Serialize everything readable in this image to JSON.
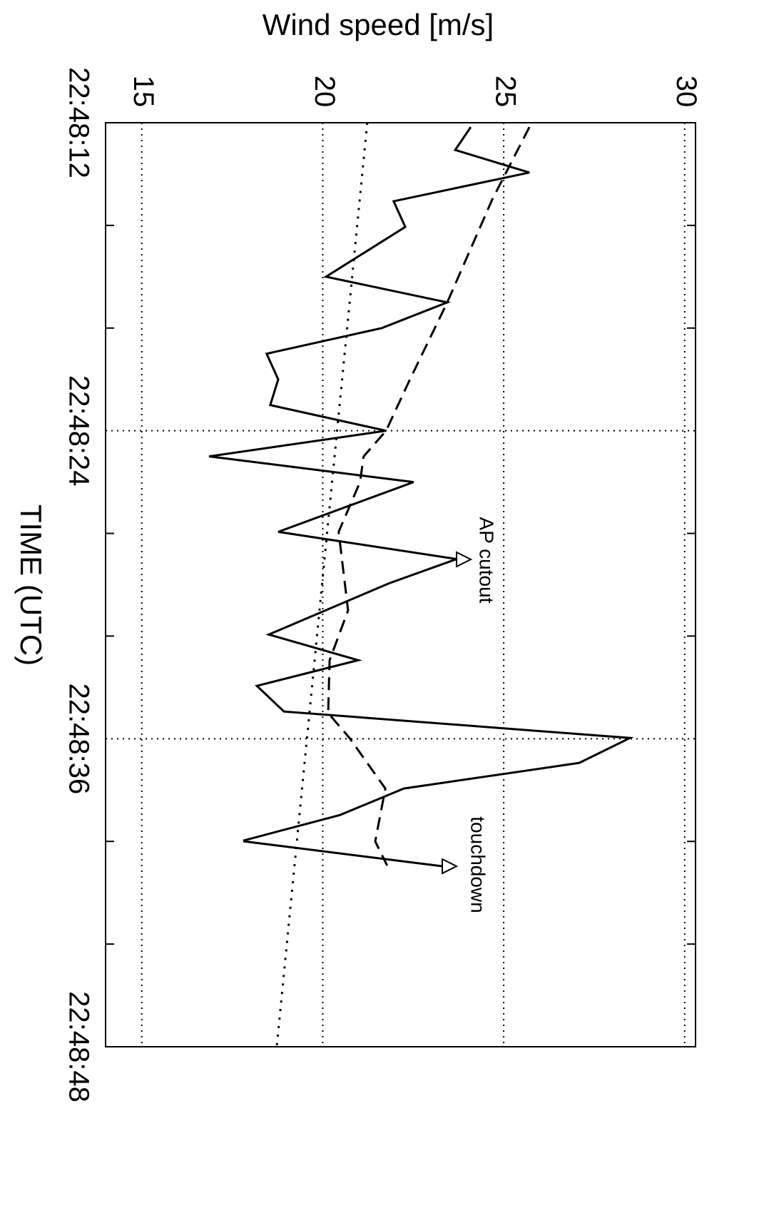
{
  "chart_data": {
    "type": "line",
    "orientation": "rotated",
    "title": "Wind speed [m/s]",
    "x_label": "TIME (UTC)",
    "xlim": [
      12,
      48
    ],
    "xticks": [
      {
        "value": 12,
        "label": "22:48:12"
      },
      {
        "value": 24,
        "label": "22:48:24"
      },
      {
        "value": 36,
        "label": "22:48:36"
      },
      {
        "value": 48,
        "label": "22:48:48"
      }
    ],
    "x_minor_ticks": [
      16,
      20,
      28,
      32,
      40,
      44
    ],
    "ylim": [
      14,
      30.3
    ],
    "yticks": [
      15,
      20,
      25,
      30
    ],
    "grid": true,
    "annotations": [
      "AP cutout",
      "touchdown"
    ],
    "series": [
      {
        "style": "solid",
        "color": "#000000",
        "x": [
          12.17,
          13.06,
          13.94,
          15.06,
          16.06,
          18.0,
          19.0,
          20.0,
          21.0,
          22.0,
          23.0,
          24.0,
          25.0,
          26.0,
          27.94,
          29.0,
          29.94,
          31.94,
          32.94,
          33.94,
          34.94,
          35.97,
          36.94,
          37.94,
          38.97,
          39.97
        ],
        "values": [
          24.09,
          23.66,
          25.71,
          21.96,
          22.28,
          20.09,
          23.44,
          21.63,
          18.45,
          18.77,
          18.55,
          21.75,
          16.86,
          22.51,
          18.77,
          23.7,
          21.84,
          18.51,
          20.98,
          18.18,
          18.93,
          28.49,
          27.09,
          22.24,
          20.48,
          17.8
        ]
      },
      {
        "style": "dashed",
        "color": "#000000",
        "x": [
          12.17,
          15.0,
          19.0,
          22.0,
          24.0,
          25.0,
          26.0,
          27.94,
          31.0,
          32.94,
          35.0,
          35.97,
          37.94,
          40.0,
          40.94
        ],
        "values": [
          25.71,
          24.68,
          23.44,
          22.41,
          21.75,
          21.13,
          21.03,
          20.44,
          20.7,
          20.19,
          20.15,
          20.74,
          21.73,
          21.45,
          21.78
        ]
      },
      {
        "style": "dotted",
        "color": "#000000",
        "x": [
          12,
          48
        ],
        "values": [
          21.23,
          18.73
        ]
      }
    ]
  }
}
